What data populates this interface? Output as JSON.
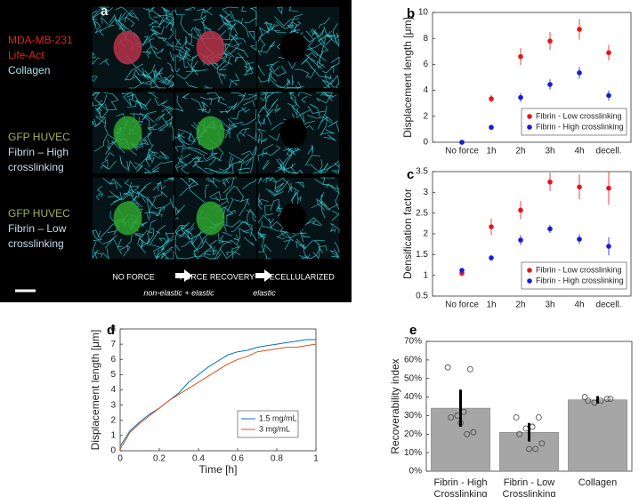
{
  "panel_a": {
    "label": "a",
    "rows": [
      [
        "MDA-MB-231",
        "Life-Act",
        "Collagen"
      ],
      [
        "GFP HUVEC",
        "Fibrin – High",
        "crosslinking"
      ],
      [
        "GFP HUVEC",
        "Fibrin – Low",
        "crosslinking"
      ]
    ],
    "columns": [
      "NO FORCE",
      "FORCE RECOVERY",
      "DECELLULARIZED"
    ],
    "transitions": [
      "non-elastic + elastic",
      "elastic"
    ]
  },
  "chart_data": [
    {
      "type": "scatter",
      "panel": "b",
      "ylabel": "Displacement length [μm]",
      "categories": [
        "No force",
        "1h",
        "2h",
        "3h",
        "4h",
        "decell."
      ],
      "series": [
        {
          "name": "Fibrin - Low crosslinking",
          "color": "#e8141c",
          "values": [
            0,
            3.35,
            6.6,
            7.8,
            8.7,
            6.9
          ],
          "errors": [
            0,
            0.3,
            0.65,
            0.7,
            0.8,
            0.6
          ]
        },
        {
          "name": "Fibrin - High crosslinking",
          "color": "#1a1ad6",
          "values": [
            0,
            1.15,
            3.45,
            4.45,
            5.35,
            3.6
          ],
          "errors": [
            0,
            0.1,
            0.35,
            0.4,
            0.45,
            0.4
          ]
        }
      ],
      "ylim": [
        0,
        10
      ],
      "yticks": [
        0,
        2,
        4,
        6,
        8,
        10
      ],
      "legend": "lower right"
    },
    {
      "type": "scatter",
      "panel": "c",
      "ylabel": "Densification factor",
      "categories": [
        "No force",
        "1h",
        "2h",
        "3h",
        "4h",
        "decell."
      ],
      "series": [
        {
          "name": "Fibrin - Low crosslinking",
          "color": "#e8141c",
          "values": [
            1.05,
            2.17,
            2.57,
            3.25,
            3.13,
            3.1
          ],
          "errors": [
            0.07,
            0.2,
            0.22,
            0.22,
            0.3,
            0.4
          ]
        },
        {
          "name": "Fibrin - High crosslinking",
          "color": "#1a1ad6",
          "values": [
            1.12,
            1.42,
            1.85,
            2.12,
            1.87,
            1.7
          ],
          "errors": [
            0.05,
            0.07,
            0.12,
            0.1,
            0.12,
            0.22
          ]
        }
      ],
      "ylim": [
        0.5,
        3.5
      ],
      "yticks": [
        0.5,
        1,
        1.5,
        2,
        2.5,
        3,
        3.5
      ],
      "legend": "lower right"
    },
    {
      "type": "line",
      "panel": "d",
      "xlabel": "Time [h]",
      "ylabel": "Displacement length [μm]",
      "x": [
        0,
        0.05,
        0.1,
        0.15,
        0.2,
        0.25,
        0.3,
        0.35,
        0.4,
        0.45,
        0.5,
        0.55,
        0.6,
        0.65,
        0.7,
        0.75,
        0.8,
        0.85,
        0.9,
        0.95,
        1
      ],
      "series": [
        {
          "name": "1.5 mg/mL",
          "color": "#0072bd",
          "values": [
            0.3,
            1.3,
            1.9,
            2.4,
            2.8,
            3.3,
            3.8,
            4.5,
            5.0,
            5.5,
            5.9,
            6.3,
            6.5,
            6.6,
            6.8,
            6.9,
            7.0,
            7.1,
            7.2,
            7.3,
            7.3
          ]
        },
        {
          "name": "3 mg/mL",
          "color": "#d95319",
          "values": [
            0.1,
            1.2,
            1.8,
            2.3,
            2.8,
            3.3,
            3.7,
            4.1,
            4.5,
            4.9,
            5.3,
            5.7,
            6.0,
            6.2,
            6.5,
            6.6,
            6.7,
            6.8,
            6.8,
            6.9,
            7.0
          ]
        }
      ],
      "xlim": [
        0,
        1
      ],
      "xticks": [
        0,
        0.2,
        0.4,
        0.6,
        0.8,
        1
      ],
      "ylim": [
        0,
        8
      ],
      "yticks": [
        0,
        1,
        2,
        3,
        4,
        5,
        6,
        7,
        8
      ],
      "legend": "lower right"
    },
    {
      "type": "bar",
      "panel": "e",
      "ylabel": "Recoverability index",
      "categories": [
        [
          "Fibrin - High",
          "Crosslinking"
        ],
        [
          "Fibrin - Low",
          "Crosslinking"
        ],
        [
          "Collagen"
        ]
      ],
      "values": [
        34,
        21,
        38.5
      ],
      "errors": [
        10,
        5,
        2
      ],
      "color": "#a6a6a6",
      "points": [
        [
          56,
          55,
          32,
          30,
          29,
          21,
          20,
          26
        ],
        [
          29,
          29,
          24,
          23,
          20,
          15,
          12,
          12
        ],
        [
          40,
          39,
          38,
          37,
          38,
          39
        ]
      ],
      "ylim": [
        0,
        70
      ],
      "yticks": [
        {
          "value": 0,
          "label": "0%"
        },
        {
          "value": 10,
          "label": "10%"
        },
        {
          "value": 20,
          "label": "20%"
        },
        {
          "value": 30,
          "label": "30%"
        },
        {
          "value": 40,
          "label": "40%"
        },
        {
          "value": 50,
          "label": "50%"
        },
        {
          "value": 60,
          "label": "60%"
        },
        {
          "value": 70,
          "label": "70%"
        }
      ]
    }
  ]
}
